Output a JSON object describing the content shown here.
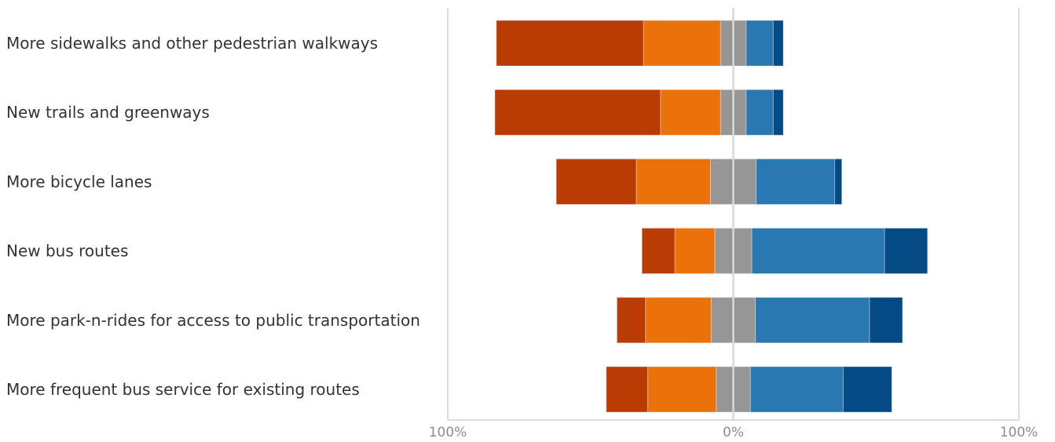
{
  "chart_data": {
    "type": "bar",
    "orientation": "horizontal",
    "stacked": "diverging",
    "title": "",
    "xlabel": "",
    "ylabel": "",
    "xlim": [
      -100,
      100
    ],
    "x_ticks": [
      "100%",
      "0%",
      "100%"
    ],
    "grid": false,
    "legend": "none",
    "categories": [
      "More sidewalks and other pedestrian walkways",
      "New trails and greenways",
      "More bicycle lanes",
      "New bus routes",
      "More park-n-rides for access to public transportation",
      "More frequent bus service for existing routes"
    ],
    "series": [
      {
        "color": "#BA3C05",
        "side": "left",
        "values": [
          51.5,
          58,
          28,
          11.5,
          10,
          14.5
        ]
      },
      {
        "color": "#EB720A",
        "side": "left",
        "values": [
          27,
          21,
          26,
          14,
          23,
          24
        ]
      },
      {
        "color": "#969696",
        "side": "center",
        "values": [
          9,
          9,
          16,
          13,
          15.5,
          12
        ]
      },
      {
        "color": "#2A78B1",
        "side": "right",
        "values": [
          9.5,
          9.5,
          27.5,
          46.5,
          40,
          32.5
        ]
      },
      {
        "color": "#044A84",
        "side": "right",
        "values": [
          3.5,
          3.5,
          2.5,
          15,
          11.5,
          17
        ]
      }
    ]
  }
}
